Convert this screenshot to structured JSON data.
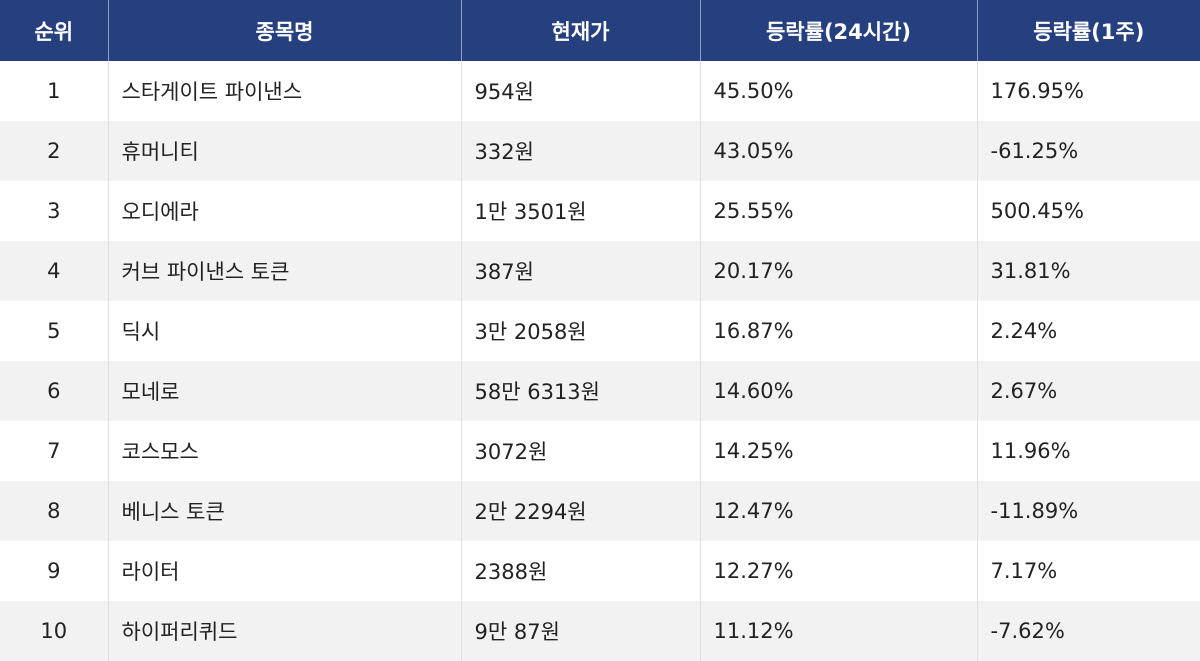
{
  "header": {
    "rank": "순위",
    "name": "종목명",
    "price": "현재가",
    "change_24h": "등락률(24시간)",
    "change_1w": "등락률(1주)"
  },
  "rows": [
    {
      "rank": "1",
      "name": "스타게이트 파이낸스",
      "price": "954원",
      "change_24h": "45.50%",
      "change_1w": "176.95%"
    },
    {
      "rank": "2",
      "name": "휴머니티",
      "price": "332원",
      "change_24h": "43.05%",
      "change_1w": "-61.25%"
    },
    {
      "rank": "3",
      "name": "오디에라",
      "price": "1만 3501원",
      "change_24h": "25.55%",
      "change_1w": "500.45%"
    },
    {
      "rank": "4",
      "name": "커브 파이낸스 토큰",
      "price": "387원",
      "change_24h": "20.17%",
      "change_1w": "31.81%"
    },
    {
      "rank": "5",
      "name": "딕시",
      "price": "3만 2058원",
      "change_24h": "16.87%",
      "change_1w": "2.24%"
    },
    {
      "rank": "6",
      "name": "모네로",
      "price": "58만 6313원",
      "change_24h": "14.60%",
      "change_1w": "2.67%"
    },
    {
      "rank": "7",
      "name": "코스모스",
      "price": "3072원",
      "change_24h": "14.25%",
      "change_1w": "11.96%"
    },
    {
      "rank": "8",
      "name": "베니스 토큰",
      "price": "2만 2294원",
      "change_24h": "12.47%",
      "change_1w": "-11.89%"
    },
    {
      "rank": "9",
      "name": "라이터",
      "price": "2388원",
      "change_24h": "12.27%",
      "change_1w": "7.17%"
    },
    {
      "rank": "10",
      "name": "하이퍼리퀴드",
      "price": "9만 87원",
      "change_24h": "11.12%",
      "change_1w": "-7.62%"
    }
  ],
  "colors": {
    "header_bg": "#26407f",
    "header_text": "#ffffff",
    "row_alt_bg": "#f2f2f2"
  }
}
